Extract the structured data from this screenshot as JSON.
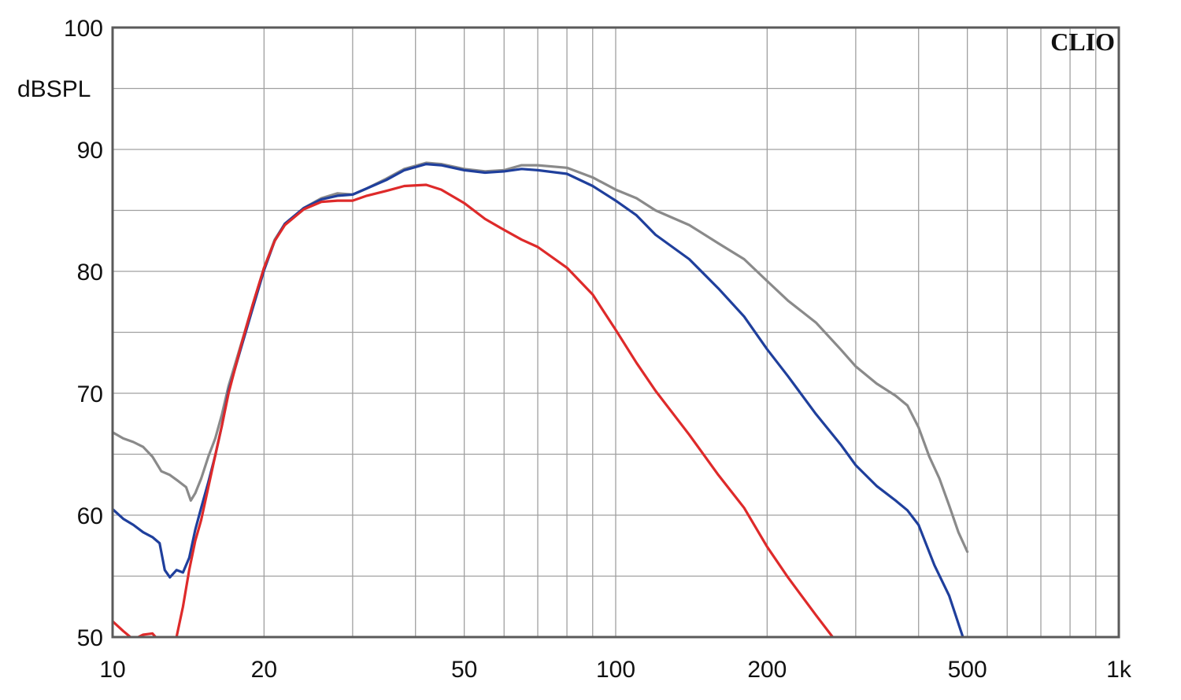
{
  "chart_data": {
    "type": "line",
    "title": "",
    "brand": "CLIO",
    "xlabel": "",
    "ylabel": "dBSPL",
    "x_scale": "log",
    "xlim": [
      10,
      1000
    ],
    "ylim": [
      50,
      100
    ],
    "x_ticks": [
      {
        "value": 10,
        "label": "10"
      },
      {
        "value": 20,
        "label": "20"
      },
      {
        "value": 50,
        "label": "50"
      },
      {
        "value": 100,
        "label": "100"
      },
      {
        "value": 200,
        "label": "200"
      },
      {
        "value": 500,
        "label": "500"
      },
      {
        "value": 1000,
        "label": "1k"
      }
    ],
    "y_ticks": [
      {
        "value": 100,
        "label": "100"
      },
      {
        "value": 90,
        "label": "90"
      },
      {
        "value": 80,
        "label": "80"
      },
      {
        "value": 70,
        "label": "70"
      },
      {
        "value": 60,
        "label": "60"
      },
      {
        "value": 50,
        "label": "50"
      }
    ],
    "grid": true,
    "colors": {
      "grid": "#a0a0a0",
      "frame": "#5a5a5a",
      "background": "#ffffff"
    },
    "series": [
      {
        "color": "#8a8a8a",
        "points": [
          [
            10,
            66.8
          ],
          [
            10.5,
            66.3
          ],
          [
            11,
            66.0
          ],
          [
            11.5,
            65.6
          ],
          [
            12,
            64.8
          ],
          [
            12.5,
            63.6
          ],
          [
            13,
            63.3
          ],
          [
            13.5,
            62.8
          ],
          [
            14,
            62.3
          ],
          [
            14.3,
            61.2
          ],
          [
            14.6,
            61.8
          ],
          [
            15,
            63.0
          ],
          [
            15.5,
            64.8
          ],
          [
            16,
            66.3
          ],
          [
            16.5,
            68.3
          ],
          [
            17,
            70.6
          ],
          [
            18,
            74.0
          ],
          [
            19,
            77.3
          ],
          [
            20,
            80.3
          ],
          [
            21,
            82.6
          ],
          [
            22,
            83.9
          ],
          [
            24,
            85.2
          ],
          [
            26,
            86.0
          ],
          [
            28,
            86.4
          ],
          [
            30,
            86.3
          ],
          [
            32,
            86.8
          ],
          [
            35,
            87.6
          ],
          [
            38,
            88.4
          ],
          [
            42,
            88.9
          ],
          [
            45,
            88.8
          ],
          [
            50,
            88.4
          ],
          [
            55,
            88.2
          ],
          [
            60,
            88.3
          ],
          [
            65,
            88.7
          ],
          [
            70,
            88.7
          ],
          [
            80,
            88.5
          ],
          [
            90,
            87.7
          ],
          [
            100,
            86.7
          ],
          [
            110,
            86.0
          ],
          [
            120,
            85.0
          ],
          [
            140,
            83.8
          ],
          [
            160,
            82.3
          ],
          [
            180,
            81.0
          ],
          [
            200,
            79.2
          ],
          [
            220,
            77.6
          ],
          [
            250,
            75.8
          ],
          [
            280,
            73.6
          ],
          [
            300,
            72.2
          ],
          [
            330,
            70.8
          ],
          [
            360,
            69.8
          ],
          [
            380,
            69.0
          ],
          [
            400,
            67.2
          ],
          [
            420,
            64.8
          ],
          [
            440,
            63.0
          ],
          [
            460,
            60.8
          ],
          [
            480,
            58.6
          ],
          [
            500,
            57.0
          ]
        ]
      },
      {
        "color": "#1f3f9c",
        "points": [
          [
            10,
            60.5
          ],
          [
            10.5,
            59.7
          ],
          [
            11,
            59.2
          ],
          [
            11.5,
            58.6
          ],
          [
            12,
            58.2
          ],
          [
            12.4,
            57.7
          ],
          [
            12.7,
            55.5
          ],
          [
            13,
            54.9
          ],
          [
            13.4,
            55.5
          ],
          [
            13.8,
            55.3
          ],
          [
            14.2,
            56.5
          ],
          [
            14.6,
            58.8
          ],
          [
            15,
            60.6
          ],
          [
            15.5,
            62.7
          ],
          [
            16,
            64.9
          ],
          [
            16.5,
            67.4
          ],
          [
            17,
            70.2
          ],
          [
            18,
            73.7
          ],
          [
            19,
            77.0
          ],
          [
            20,
            80.1
          ],
          [
            21,
            82.5
          ],
          [
            22,
            83.9
          ],
          [
            24,
            85.2
          ],
          [
            26,
            85.9
          ],
          [
            28,
            86.2
          ],
          [
            30,
            86.3
          ],
          [
            32,
            86.8
          ],
          [
            35,
            87.5
          ],
          [
            38,
            88.3
          ],
          [
            42,
            88.8
          ],
          [
            45,
            88.7
          ],
          [
            50,
            88.3
          ],
          [
            55,
            88.1
          ],
          [
            60,
            88.2
          ],
          [
            65,
            88.4
          ],
          [
            70,
            88.3
          ],
          [
            80,
            88.0
          ],
          [
            90,
            87.0
          ],
          [
            100,
            85.8
          ],
          [
            110,
            84.6
          ],
          [
            120,
            83.0
          ],
          [
            140,
            81.0
          ],
          [
            160,
            78.6
          ],
          [
            180,
            76.3
          ],
          [
            200,
            73.6
          ],
          [
            220,
            71.4
          ],
          [
            250,
            68.3
          ],
          [
            280,
            65.8
          ],
          [
            300,
            64.1
          ],
          [
            330,
            62.4
          ],
          [
            360,
            61.2
          ],
          [
            380,
            60.4
          ],
          [
            400,
            59.2
          ],
          [
            430,
            55.9
          ],
          [
            460,
            53.4
          ],
          [
            490,
            50.0
          ]
        ]
      },
      {
        "color": "#de2a2a",
        "points": [
          [
            10,
            51.3
          ],
          [
            10.5,
            50.5
          ],
          [
            11,
            49.8
          ],
          [
            11.5,
            50.2
          ],
          [
            12,
            50.3
          ],
          [
            12.3,
            49.8
          ],
          [
            13,
            49.0
          ],
          [
            13.4,
            50.0
          ],
          [
            13.8,
            52.5
          ],
          [
            14.2,
            55.5
          ],
          [
            14.6,
            57.9
          ],
          [
            15,
            59.6
          ],
          [
            15.5,
            62.3
          ],
          [
            16,
            64.9
          ],
          [
            16.5,
            67.4
          ],
          [
            17,
            70.0
          ],
          [
            18,
            73.9
          ],
          [
            19,
            77.3
          ],
          [
            20,
            80.3
          ],
          [
            21,
            82.5
          ],
          [
            22,
            83.8
          ],
          [
            24,
            85.1
          ],
          [
            26,
            85.7
          ],
          [
            28,
            85.8
          ],
          [
            30,
            85.8
          ],
          [
            32,
            86.2
          ],
          [
            35,
            86.6
          ],
          [
            38,
            87.0
          ],
          [
            42,
            87.1
          ],
          [
            45,
            86.7
          ],
          [
            50,
            85.6
          ],
          [
            55,
            84.3
          ],
          [
            60,
            83.4
          ],
          [
            65,
            82.6
          ],
          [
            70,
            82.0
          ],
          [
            80,
            80.3
          ],
          [
            90,
            78.1
          ],
          [
            100,
            75.2
          ],
          [
            110,
            72.5
          ],
          [
            120,
            70.2
          ],
          [
            140,
            66.6
          ],
          [
            160,
            63.3
          ],
          [
            180,
            60.6
          ],
          [
            200,
            57.4
          ],
          [
            220,
            54.9
          ],
          [
            250,
            51.8
          ],
          [
            270,
            50.0
          ]
        ]
      }
    ]
  }
}
